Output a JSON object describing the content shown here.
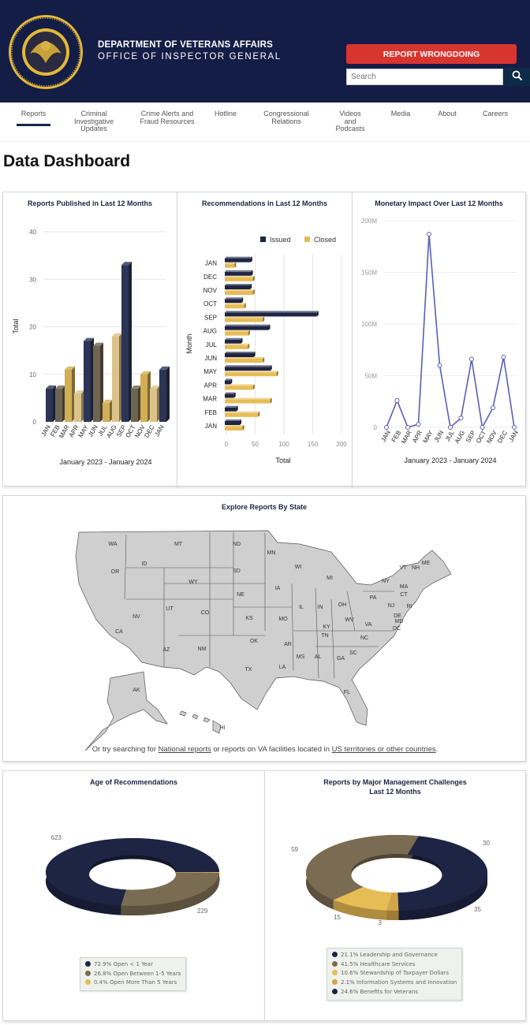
{
  "header": {
    "agency_line1": "DEPARTMENT OF VETERANS AFFAIRS",
    "agency_line2": "OFFICE OF INSPECTOR GENERAL",
    "seal_text": "OFFICE OF INSPECTOR GENERAL",
    "report_button": "REPORT WRONGDOING",
    "search_placeholder": "Search",
    "search_icon": "magnifier-icon",
    "bg_color": "#141d45",
    "button_color": "#d9352f"
  },
  "nav": {
    "items": [
      {
        "label": "Reports",
        "active": true
      },
      {
        "label": "Criminal Investigative Updates"
      },
      {
        "label": "Crime Alerts and Fraud Resources"
      },
      {
        "label": "Hotline"
      },
      {
        "label": "Congressional Relations"
      },
      {
        "label": "Videos and Podcasts"
      },
      {
        "label": "Media"
      },
      {
        "label": "About"
      },
      {
        "label": "Careers"
      }
    ]
  },
  "page_title": "Data Dashboard",
  "chart_data": [
    {
      "type": "bar",
      "title": "Reports Published in Last 12 Months",
      "ylabel": "Total",
      "xlabel": "January 2023 - January 2024",
      "ylim": [
        0,
        40
      ],
      "yticks": [
        0,
        10,
        20,
        30,
        40
      ],
      "grid": true,
      "categories": [
        "JAN",
        "FEB",
        "MAR",
        "APR",
        "MAY",
        "JUN",
        "JUL",
        "AUG",
        "SEP",
        "OCT",
        "NOV",
        "DEC",
        "JAN"
      ],
      "values": [
        7,
        7,
        11,
        6,
        17,
        16,
        4,
        18,
        33,
        7,
        10,
        7,
        11
      ],
      "colors": [
        "#2c3556",
        "#6f6450",
        "#d2ae55",
        "#dcc38a"
      ]
    },
    {
      "type": "bar",
      "orientation": "horizontal",
      "title": "Recommendations in Last 12 Months",
      "ylabel": "Month",
      "xlabel": "Total",
      "xlim": [
        0,
        200
      ],
      "xticks": [
        0,
        50,
        100,
        150,
        200
      ],
      "grid": true,
      "legend": "top-right",
      "categories": [
        "JAN",
        "FEB",
        "MAR",
        "APR",
        "MAY",
        "JUN",
        "JUL",
        "AUG",
        "SEP",
        "OCT",
        "NOV",
        "DEC",
        "JAN"
      ],
      "series": [
        {
          "name": "Issued",
          "color": "#1e2444",
          "values": [
            26,
            20,
            16,
            10,
            79,
            50,
            28,
            76,
            160,
            29,
            44,
            46,
            45
          ]
        },
        {
          "name": "Closed",
          "color": "#e6bd55",
          "values": [
            31,
            58,
            79,
            49,
            90,
            66,
            40,
            41,
            66,
            34,
            49,
            49,
            17
          ]
        }
      ]
    },
    {
      "type": "line",
      "title": "Monetary Impact Over Last 12 Months",
      "xlabel": "January 2023 - January 2024",
      "ylim": [
        0,
        200000000
      ],
      "yticks": [
        "0",
        "50M",
        "100M",
        "150M",
        "200M"
      ],
      "grid": true,
      "color": "#5a5fb8",
      "categories": [
        "JAN",
        "FEB",
        "MAR",
        "APR",
        "MAY",
        "JUN",
        "JUL",
        "AUG",
        "SEP",
        "OCT",
        "NOV",
        "DEC",
        "JAN"
      ],
      "values": [
        0,
        26000000,
        0,
        3000000,
        187000000,
        60000000,
        0,
        9000000,
        66000000,
        0,
        19000000,
        68000000,
        0
      ]
    },
    {
      "type": "pie",
      "donut": true,
      "title": "Age of Recommendations",
      "slices": [
        {
          "label": "Open < 1 Year",
          "value": 623,
          "percent": "72.9%",
          "color": "#1e2444"
        },
        {
          "label": "Open Between 1-5 Years",
          "value": 229,
          "percent": "26.8%",
          "color": "#7a6c52"
        },
        {
          "label": "Open More Than 5 Years",
          "value": 3,
          "percent": "0.4%",
          "color": "#e6bd55"
        }
      ]
    },
    {
      "type": "pie",
      "donut": true,
      "title": "Reports by Major Management Challenges",
      "subtitle": "Last 12 Months",
      "slices": [
        {
          "label": "Leadership and Governance",
          "value": 30,
          "percent": "21.1%",
          "color": "#1e2444"
        },
        {
          "label": "Healthcare Services",
          "value": 59,
          "percent": "41.5%",
          "color": "#7a6c52"
        },
        {
          "label": "Stewardship of Taxpayer Dollars",
          "value": 15,
          "percent": "10.6%",
          "color": "#e6bd55"
        },
        {
          "label": "Information Systems and Innovation",
          "value": 3,
          "percent": "2.1%",
          "color": "#d2a54a"
        },
        {
          "label": "Benefits for Veterans",
          "value": 35,
          "percent": "24.6%",
          "color": "#1e2444"
        }
      ]
    }
  ],
  "map": {
    "title": "Explore Reports By State",
    "states": [
      "WA",
      "OR",
      "ID",
      "MT",
      "ND",
      "MN",
      "WI",
      "MI",
      "SD",
      "WY",
      "NE",
      "IA",
      "IL",
      "IN",
      "OH",
      "PA",
      "NY",
      "VT",
      "NH",
      "ME",
      "MA",
      "CT",
      "RI",
      "NJ",
      "DE",
      "MD",
      "DC",
      "VA",
      "WV",
      "KY",
      "NV",
      "UT",
      "CO",
      "KS",
      "MO",
      "CA",
      "AZ",
      "NM",
      "OK",
      "AR",
      "TN",
      "NC",
      "SC",
      "GA",
      "AL",
      "MS",
      "LA",
      "TX",
      "FL",
      "AK",
      "HI"
    ],
    "note_prefix": "Or try searching for ",
    "note_link1": "National reports",
    "note_middle": " or reports on VA facilities located in ",
    "note_link2": "US territories or other countries",
    "note_suffix": "."
  }
}
